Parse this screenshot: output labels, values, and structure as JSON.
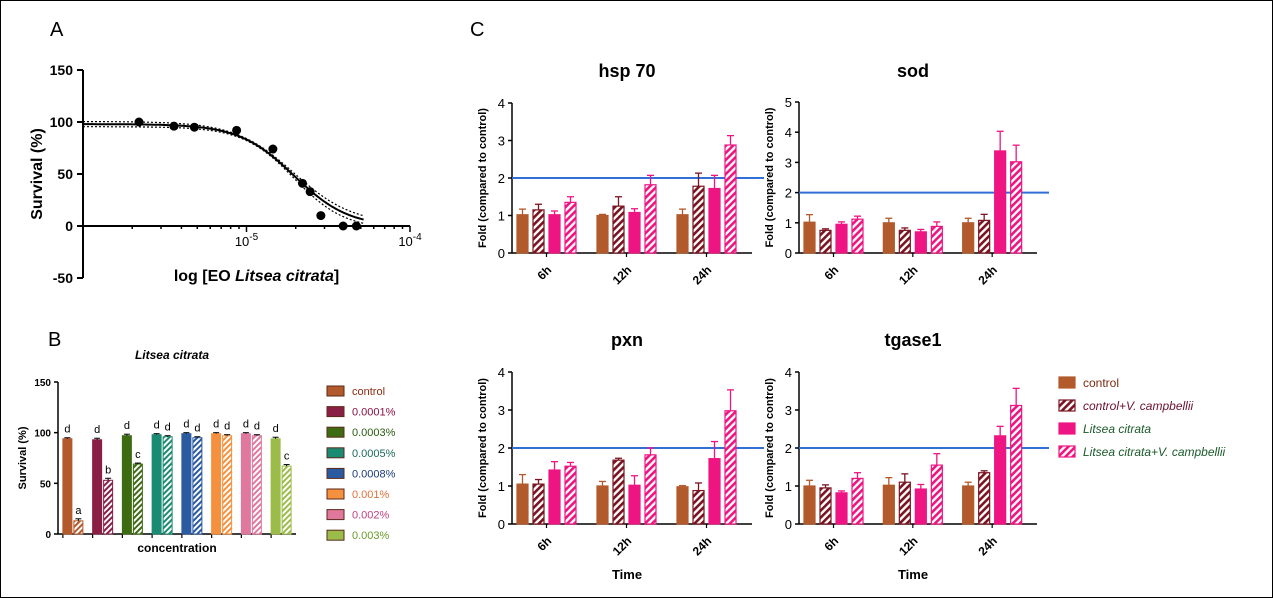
{
  "panel_labels": {
    "a": "A",
    "b": "B",
    "c": "C"
  },
  "panel_a": {
    "xlabel_prefix": "log [EO ",
    "xlabel_italic": "Litsea citrata",
    "xlabel_suffix": "]",
    "ylabel": "Survival (%)"
  },
  "panel_b": {
    "title": "Litsea citrata",
    "ylabel": "Survival (%)",
    "xlabel": "concentration"
  },
  "panel_c": {
    "ylabel": "Fold (compared to control)",
    "xlabel": "Time",
    "legend": [
      {
        "label": "control",
        "color": "#b25a2c",
        "pattern": "solid",
        "italic": false,
        "text_color": "#7a2a10"
      },
      {
        "label": "control+V. campbellii",
        "color": "#7a1420",
        "pattern": "hatch",
        "italic": true,
        "text_color": "#6a1030"
      },
      {
        "label": "Litsea citrata",
        "color": "#ee1582",
        "pattern": "solid",
        "italic": true,
        "text_color": "#1a5a2a"
      },
      {
        "label": "Litsea citrata+V. campbellii",
        "color": "#ee1582",
        "pattern": "hatch",
        "italic": true,
        "text_color": "#1a5a2a"
      }
    ]
  },
  "chart_data": [
    {
      "type": "scatter",
      "panel": "A",
      "xlabel": "log [EO Litsea citrata]",
      "ylabel": "Survival (%)",
      "xscale": "log",
      "xlim": [
        1e-06,
        0.0001
      ],
      "ylim": [
        -50,
        150
      ],
      "yticks": [
        -50,
        0,
        50,
        100,
        150
      ],
      "xtick_labels": [
        "10^-5",
        "10^-4"
      ],
      "points_x": [
        2.2e-06,
        3.6e-06,
        4.8e-06,
        8.7e-06,
        1.45e-05,
        2.2e-05,
        2.45e-05,
        2.85e-05,
        3.9e-05,
        4.7e-05
      ],
      "points_y": [
        100,
        96,
        95,
        92,
        74,
        41,
        33,
        10,
        0,
        0
      ],
      "fit": {
        "top": 98,
        "bottom": -1,
        "ec50": 1.95e-05,
        "hill": 2.6
      }
    },
    {
      "type": "bar",
      "panel": "B",
      "title": "Litsea citrata",
      "xlabel": "concentration",
      "ylabel": "Survival (%)",
      "ylim": [
        0,
        150
      ],
      "yticks": [
        0,
        50,
        100,
        150
      ],
      "categories": [
        "control",
        "0.0001%",
        "0.0003%",
        "0.0005%",
        "0.0008%",
        "0.001%",
        "0.002%",
        "0.003%"
      ],
      "colors": [
        "#b25a2c",
        "#8a1f45",
        "#3d6b12",
        "#1a8a72",
        "#2a5aa0",
        "#f5913e",
        "#e0789e",
        "#9cbc4a"
      ],
      "legend_text_colors": [
        "#8a2a10",
        "#8a1040",
        "#2a5a10",
        "#1a6a5a",
        "#1a3a7a",
        "#e0703a",
        "#c04080",
        "#6a9a2a"
      ],
      "series": [
        {
          "name": "solid",
          "values": [
            94,
            93,
            97,
            98,
            99,
            99,
            99,
            94
          ],
          "errors": [
            1,
            1.5,
            1.5,
            1,
            1,
            1,
            1,
            1.5
          ],
          "letters": [
            "d",
            "d",
            "d",
            "d",
            "d",
            "d",
            "d",
            "d"
          ]
        },
        {
          "name": "hatched",
          "values": [
            13,
            53,
            69,
            96,
            95,
            97,
            97,
            67
          ],
          "errors": [
            2,
            2,
            1,
            1,
            1,
            1,
            1,
            1.5
          ],
          "letters": [
            "a",
            "b",
            "c",
            "d",
            "d",
            "d",
            "d",
            "c"
          ]
        }
      ]
    },
    {
      "type": "bar",
      "panel": "C",
      "title": "hsp 70",
      "ylabel": "Fold (compared to control)",
      "ylim": [
        0,
        4
      ],
      "yticks": [
        0,
        1,
        2,
        3,
        4
      ],
      "categories": [
        "6h",
        "12h",
        "24h"
      ],
      "reference_line": 2,
      "series": [
        {
          "name": "control",
          "values": [
            1.02,
            1.0,
            1.02
          ],
          "errors": [
            0.15,
            0.03,
            0.15
          ]
        },
        {
          "name": "control+V. campbellii",
          "values": [
            1.15,
            1.25,
            1.78
          ],
          "errors": [
            0.15,
            0.25,
            0.35
          ]
        },
        {
          "name": "Litsea citrata",
          "values": [
            1.02,
            1.08,
            1.72
          ],
          "errors": [
            0.1,
            0.1,
            0.35
          ]
        },
        {
          "name": "Litsea citrata+V. campbellii",
          "values": [
            1.35,
            1.82,
            2.88
          ],
          "errors": [
            0.15,
            0.25,
            0.25
          ]
        }
      ]
    },
    {
      "type": "bar",
      "panel": "C",
      "title": "sod",
      "ylabel": "Fold (compared to control)",
      "ylim": [
        0,
        5
      ],
      "yticks": [
        0,
        1,
        2,
        3,
        4,
        5
      ],
      "categories": [
        "6h",
        "12h",
        "24h"
      ],
      "reference_line": 2,
      "series": [
        {
          "name": "control",
          "values": [
            1.02,
            1.0,
            1.0
          ],
          "errors": [
            0.25,
            0.15,
            0.15
          ]
        },
        {
          "name": "control+V. campbellii",
          "values": [
            0.75,
            0.75,
            1.08
          ],
          "errors": [
            0.05,
            0.08,
            0.2
          ]
        },
        {
          "name": "Litsea citrata",
          "values": [
            0.95,
            0.7,
            3.38
          ],
          "errors": [
            0.08,
            0.08,
            0.65
          ]
        },
        {
          "name": "Litsea citrata+V. campbellii",
          "values": [
            1.12,
            0.88,
            3.02
          ],
          "errors": [
            0.1,
            0.15,
            0.55
          ]
        }
      ]
    },
    {
      "type": "bar",
      "panel": "C",
      "title": "pxn",
      "xlabel": "Time",
      "ylabel": "Fold (compared to control)",
      "ylim": [
        0,
        4
      ],
      "yticks": [
        0,
        1,
        2,
        3,
        4
      ],
      "categories": [
        "6h",
        "12h",
        "24h"
      ],
      "reference_line": 2,
      "series": [
        {
          "name": "control",
          "values": [
            1.05,
            1.0,
            0.98
          ],
          "errors": [
            0.25,
            0.12,
            0.03
          ]
        },
        {
          "name": "control+V. campbellii",
          "values": [
            1.05,
            1.68,
            0.88
          ],
          "errors": [
            0.12,
            0.05,
            0.2
          ]
        },
        {
          "name": "Litsea citrata",
          "values": [
            1.42,
            1.02,
            1.72
          ],
          "errors": [
            0.22,
            0.25,
            0.45
          ]
        },
        {
          "name": "Litsea citrata+V. campbellii",
          "values": [
            1.52,
            1.82,
            2.98
          ],
          "errors": [
            0.1,
            0.18,
            0.55
          ]
        }
      ]
    },
    {
      "type": "bar",
      "panel": "C",
      "title": "tgase1",
      "xlabel": "Time",
      "ylabel": "Fold (compared to control)",
      "ylim": [
        0,
        4
      ],
      "yticks": [
        0,
        1,
        2,
        3,
        4
      ],
      "categories": [
        "6h",
        "12h",
        "24h"
      ],
      "reference_line": 2,
      "series": [
        {
          "name": "control",
          "values": [
            1.0,
            1.02,
            1.0
          ],
          "errors": [
            0.15,
            0.2,
            0.1
          ]
        },
        {
          "name": "control+V. campbellii",
          "values": [
            0.95,
            1.1,
            1.35
          ],
          "errors": [
            0.08,
            0.22,
            0.05
          ]
        },
        {
          "name": "Litsea citrata",
          "values": [
            0.82,
            0.92,
            2.32
          ],
          "errors": [
            0.05,
            0.12,
            0.25
          ]
        },
        {
          "name": "Litsea citrata+V. campbellii",
          "values": [
            1.2,
            1.55,
            3.12
          ],
          "errors": [
            0.15,
            0.3,
            0.45
          ]
        }
      ]
    }
  ]
}
